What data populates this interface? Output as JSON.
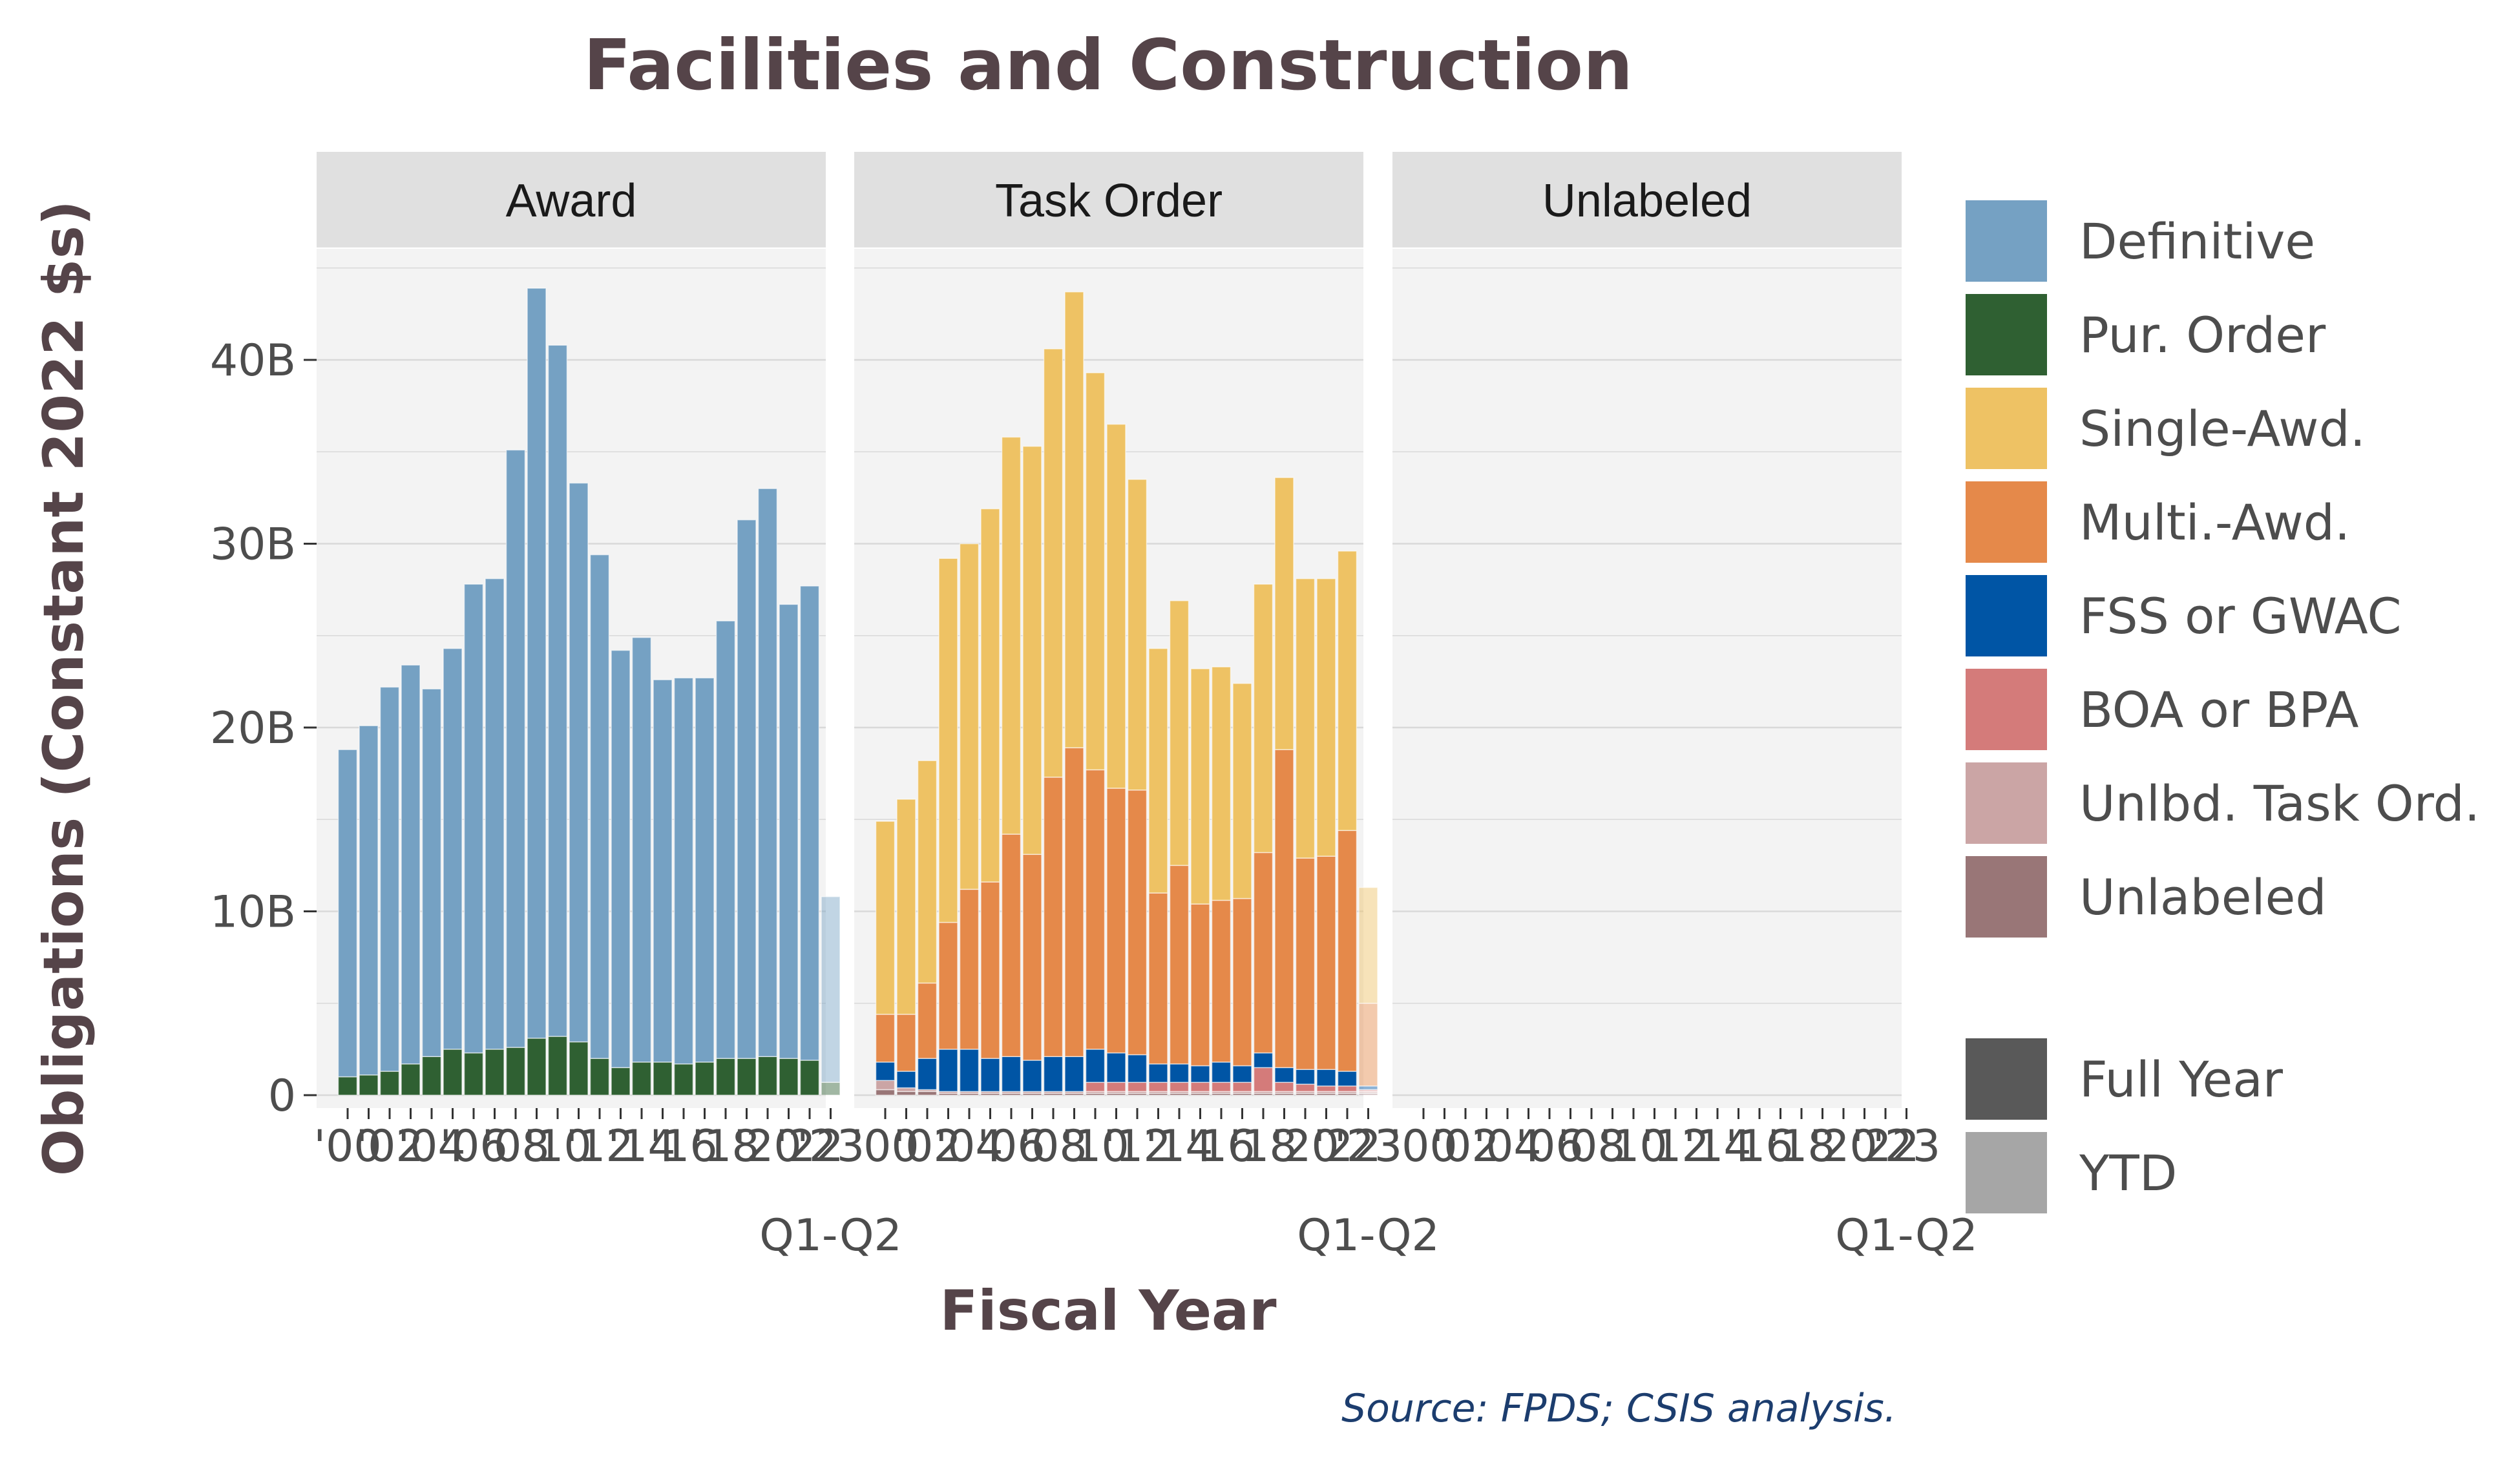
{
  "chart_data": {
    "type": "bar",
    "stacked": true,
    "title": "Facilities and Construction",
    "xlabel": "Fiscal Year",
    "ylabel": "Obligations (Constant 2022 $s)",
    "source": "Source: FPDS; CSIS analysis.",
    "ylim": [
      0,
      47
    ],
    "y_ticks": [
      0,
      10,
      20,
      30,
      40
    ],
    "y_tick_labels": [
      "0",
      "10B",
      "20B",
      "30B",
      "40B"
    ],
    "y_unit": "billions",
    "x_tick_labels": [
      "'00",
      "'02",
      "'04",
      "'06",
      "'08",
      "'10",
      "'12",
      "'14",
      "'16",
      "'18",
      "'20",
      "'22",
      "'23"
    ],
    "x_extra_label": "Q1-Q2",
    "grid": true,
    "legend_position": "right",
    "categories": [
      "2000",
      "2001",
      "2002",
      "2003",
      "2004",
      "2005",
      "2006",
      "2007",
      "2008",
      "2009",
      "2010",
      "2011",
      "2012",
      "2013",
      "2014",
      "2015",
      "2016",
      "2017",
      "2018",
      "2019",
      "2020",
      "2021",
      "2022",
      "2023"
    ],
    "ytd_category": "2023",
    "legend": {
      "vehicles": [
        {
          "name": "Definitive",
          "color": "#75A1C3"
        },
        {
          "name": "Pur. Order",
          "color": "#2F6032"
        },
        {
          "name": "Single-Awd.",
          "color": "#EEC264"
        },
        {
          "name": "Multi.-Awd.",
          "color": "#E5894A"
        },
        {
          "name": "FSS or GWAC",
          "color": "#0055A5"
        },
        {
          "name": "BOA or BPA",
          "color": "#D47B7A"
        },
        {
          "name": "Unlbd. Task Ord.",
          "color": "#CBA5A5"
        },
        {
          "name": "Unlabeled",
          "color": "#997677"
        }
      ],
      "period": [
        {
          "name": "Full Year",
          "color": "#595959"
        },
        {
          "name": "YTD",
          "color": "#A6A6A6"
        }
      ]
    },
    "facets": [
      {
        "name": "Award",
        "series": [
          {
            "name": "Pur. Order",
            "values": [
              1.0,
              1.1,
              1.3,
              1.7,
              2.1,
              2.5,
              2.3,
              2.5,
              2.6,
              3.1,
              3.2,
              2.9,
              2.0,
              1.5,
              1.8,
              1.8,
              1.7,
              1.8,
              2.0,
              2.0,
              2.1,
              2.0,
              1.9,
              0.7
            ]
          },
          {
            "name": "Definitive",
            "values": [
              17.8,
              19.0,
              20.9,
              21.7,
              20.0,
              21.8,
              25.5,
              25.6,
              32.5,
              40.8,
              37.6,
              30.4,
              27.4,
              22.7,
              23.1,
              20.8,
              21.0,
              20.9,
              23.8,
              29.3,
              30.9,
              24.7,
              25.8,
              10.1
            ]
          }
        ]
      },
      {
        "name": "Task Order",
        "series": [
          {
            "name": "Unlabeled",
            "values": [
              0.3,
              0.2,
              0.2,
              0.1,
              0.1,
              0.1,
              0.1,
              0.1,
              0.1,
              0.1,
              0.1,
              0.1,
              0.1,
              0.1,
              0.1,
              0.1,
              0.1,
              0.1,
              0.1,
              0.1,
              0.1,
              0.1,
              0.1,
              0.1
            ]
          },
          {
            "name": "Unlbd. Task Ord.",
            "values": [
              0.5,
              0.2,
              0.1,
              0.1,
              0.1,
              0.1,
              0.1,
              0.1,
              0.1,
              0.1,
              0.1,
              0.1,
              0.1,
              0.1,
              0.1,
              0.1,
              0.1,
              0.1,
              0.1,
              0.1,
              0.1,
              0.1,
              0.1,
              0.1
            ]
          },
          {
            "name": "BOA or BPA",
            "values": [
              0.0,
              0.0,
              0.0,
              0.0,
              0.0,
              0.0,
              0.0,
              0.0,
              0.0,
              0.0,
              0.5,
              0.5,
              0.5,
              0.5,
              0.5,
              0.5,
              0.5,
              0.5,
              1.3,
              0.5,
              0.4,
              0.3,
              0.3,
              0.1
            ]
          },
          {
            "name": "FSS or GWAC",
            "values": [
              1.0,
              0.9,
              1.7,
              2.3,
              2.3,
              1.8,
              1.9,
              1.7,
              1.9,
              1.9,
              1.8,
              1.6,
              1.5,
              1.0,
              1.0,
              0.9,
              1.1,
              0.9,
              0.8,
              0.8,
              0.8,
              0.9,
              0.8,
              0.2
            ]
          },
          {
            "name": "Multi.-Awd.",
            "values": [
              2.6,
              3.1,
              4.1,
              6.9,
              8.7,
              9.6,
              12.1,
              11.2,
              15.2,
              16.8,
              15.2,
              14.4,
              14.4,
              9.3,
              10.8,
              8.8,
              8.8,
              9.1,
              10.9,
              17.3,
              11.5,
              11.6,
              13.1,
              4.5
            ]
          },
          {
            "name": "Single-Awd.",
            "values": [
              10.5,
              11.7,
              12.1,
              19.8,
              18.8,
              20.3,
              21.6,
              22.2,
              23.3,
              24.8,
              21.6,
              19.8,
              16.9,
              13.3,
              14.4,
              12.8,
              12.7,
              11.7,
              14.6,
              14.8,
              15.2,
              15.1,
              15.2,
              6.3
            ]
          }
        ]
      },
      {
        "name": "Unlabeled",
        "series": []
      }
    ]
  }
}
